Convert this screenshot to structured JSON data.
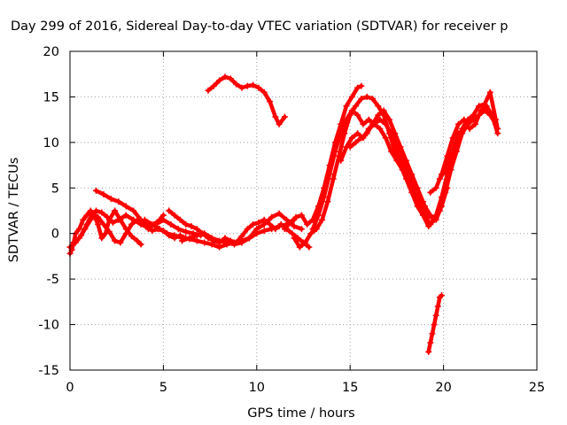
{
  "chart_data": {
    "type": "line",
    "title": "Day 299 of 2016, Sidereal Day-to-day VTEC variation (SDTVAR) for receiver p",
    "xlabel": "GPS time / hours",
    "ylabel": "SDTVAR / TECUs",
    "xlim": [
      0,
      25
    ],
    "ylim": [
      -15,
      20
    ],
    "xticks": [
      0,
      5,
      10,
      15,
      20,
      25
    ],
    "yticks": [
      -15,
      -10,
      -5,
      0,
      5,
      10,
      15,
      20
    ],
    "grid": true,
    "series_color": "#ff0000",
    "series": [
      {
        "x": [
          0,
          0.1,
          0.2,
          0.3,
          0.5,
          0.7,
          0.9,
          1.1,
          1.3,
          1.5,
          1.7,
          1.9,
          2.1,
          2.4,
          2.7,
          3.0,
          3.3,
          3.6,
          3.8
        ],
        "y": [
          -2.2,
          -1.8,
          -1.0,
          0.0,
          0.5,
          1.5,
          2.0,
          2.5,
          2.0,
          1.0,
          -0.5,
          0.0,
          1.5,
          2.5,
          1.5,
          0.5,
          -0.3,
          -0.8,
          -1.2
        ]
      },
      {
        "x": [
          0,
          0.3,
          0.6,
          0.9,
          1.2,
          1.5,
          1.8,
          2.1,
          2.4,
          2.7,
          3.0,
          3.3,
          3.6,
          3.9,
          4.2,
          4.5,
          4.8,
          5.0
        ],
        "y": [
          -1.5,
          -1.0,
          -0.2,
          1.0,
          2.2,
          1.8,
          1.0,
          0.2,
          -0.8,
          -1.0,
          0.0,
          1.0,
          1.5,
          1.0,
          0.5,
          1.0,
          1.5,
          2.0
        ]
      },
      {
        "x": [
          0.2,
          0.5,
          0.8,
          1.1,
          1.4,
          1.7,
          2.0,
          2.3,
          2.6,
          3.0,
          3.4,
          3.8,
          4.2,
          4.6,
          5.0,
          5.4,
          5.8,
          6.2,
          6.6,
          7.0
        ],
        "y": [
          -1.0,
          -0.5,
          0.5,
          1.5,
          2.5,
          2.3,
          1.8,
          1.2,
          1.5,
          2.0,
          1.5,
          1.0,
          0.8,
          1.0,
          1.5,
          1.0,
          0.5,
          0.2,
          0.0,
          -0.2
        ]
      },
      {
        "x": [
          1.4,
          1.8,
          2.2,
          2.6,
          3.0,
          3.4,
          3.8,
          4.1,
          4.4,
          4.7,
          5.0,
          5.3,
          5.6,
          5.9,
          6.2
        ],
        "y": [
          4.7,
          4.3,
          3.8,
          3.5,
          3.0,
          2.5,
          1.5,
          0.8,
          0.3,
          0.5,
          0.3,
          -0.2,
          -0.5,
          -0.2,
          -0.5
        ]
      },
      {
        "x": [
          5.3,
          5.6,
          5.9,
          6.2,
          6.5,
          6.8,
          7.1,
          7.4,
          7.7,
          8.0,
          8.3,
          8.6,
          8.9,
          9.2,
          9.5,
          9.8,
          10.1,
          10.4,
          10.7,
          11.0,
          11.3,
          11.6,
          11.9,
          12.2,
          12.5,
          12.8
        ],
        "y": [
          2.5,
          2.0,
          1.5,
          1.0,
          0.8,
          0.5,
          0.0,
          -0.5,
          -0.8,
          -1.0,
          -0.5,
          -0.8,
          -1.0,
          -0.3,
          0.5,
          1.0,
          1.2,
          1.5,
          1.0,
          0.5,
          1.0,
          0.5,
          0.0,
          -0.5,
          -1.0,
          -1.5
        ]
      },
      {
        "x": [
          4.0,
          4.4,
          4.8,
          5.2,
          5.6,
          6.0,
          6.4,
          6.8,
          7.2,
          7.6,
          8.0,
          8.4,
          8.8,
          9.2,
          9.6,
          10.0,
          10.4,
          10.8,
          11.2,
          11.6,
          12.0
        ],
        "y": [
          1.5,
          1.0,
          0.5,
          0.0,
          -0.2,
          -0.5,
          -0.6,
          -0.8,
          -1.0,
          -1.2,
          -1.5,
          -1.2,
          -1.0,
          -0.8,
          -0.5,
          0.0,
          0.3,
          0.5,
          0.8,
          1.0,
          1.5
        ]
      },
      {
        "x": [
          6.0,
          6.4,
          6.8,
          7.2,
          7.6,
          8.0,
          8.4,
          8.8,
          9.2,
          9.6,
          10.0,
          10.4,
          10.8,
          11.2,
          11.6,
          12.0,
          12.4
        ],
        "y": [
          -0.8,
          -0.5,
          -0.2,
          0.0,
          -0.5,
          -0.8,
          -1.0,
          -1.2,
          -1.0,
          -0.5,
          0.5,
          1.0,
          1.8,
          2.2,
          1.5,
          0.8,
          0.5
        ]
      },
      {
        "x": [
          7.4,
          7.7,
          8.0,
          8.3,
          8.6,
          8.9,
          9.2,
          9.5,
          9.8,
          10.1,
          10.4,
          10.7,
          11.0,
          11.2,
          11.5
        ],
        "y": [
          15.7,
          16.2,
          16.8,
          17.2,
          17.0,
          16.4,
          16.0,
          16.2,
          16.3,
          16.0,
          15.5,
          14.5,
          12.8,
          12.0,
          12.8
        ]
      },
      {
        "x": [
          11.5,
          11.8,
          12.1,
          12.4,
          12.7,
          13.0,
          13.3,
          13.6,
          13.9,
          14.2,
          14.5,
          14.8,
          15.1,
          15.4,
          15.6
        ],
        "y": [
          0.5,
          1.2,
          1.8,
          2.0,
          1.0,
          1.5,
          3.0,
          5.0,
          7.5,
          10.0,
          12.0,
          14.0,
          15.0,
          16.0,
          16.2
        ]
      },
      {
        "x": [
          12.0,
          12.3,
          12.6,
          12.9,
          13.2,
          13.5,
          13.8,
          14.1,
          14.4,
          14.7,
          15.0,
          15.3,
          15.6,
          15.9,
          16.2,
          16.5,
          16.8,
          17.1,
          17.4,
          17.7,
          18.0,
          18.3,
          18.6,
          18.9,
          19.2,
          19.5
        ],
        "y": [
          -0.5,
          -1.5,
          -1.0,
          0.0,
          0.5,
          1.5,
          3.5,
          6.0,
          8.5,
          11.0,
          13.0,
          14.0,
          14.8,
          15.0,
          14.8,
          14.0,
          13.0,
          11.0,
          9.0,
          7.5,
          6.0,
          4.5,
          3.0,
          2.0,
          0.8,
          1.5
        ]
      },
      {
        "x": [
          13.0,
          13.3,
          13.6,
          13.9,
          14.2,
          14.5,
          14.8,
          15.1,
          15.4,
          15.7,
          16.0,
          16.3,
          16.6,
          16.9,
          17.2,
          17.5,
          17.8,
          18.1,
          18.4,
          18.7,
          19.0,
          19.3,
          19.6,
          19.9,
          20.2
        ],
        "y": [
          0.5,
          2.0,
          4.0,
          6.5,
          9.0,
          11.0,
          12.5,
          13.5,
          13.0,
          12.0,
          12.5,
          12.0,
          11.5,
          10.5,
          9.0,
          8.0,
          7.0,
          6.0,
          5.0,
          4.0,
          3.0,
          2.0,
          1.5,
          3.0,
          5.0
        ]
      },
      {
        "x": [
          14.5,
          14.8,
          15.1,
          15.4,
          15.7,
          16.0,
          16.3,
          16.6,
          16.9,
          17.2,
          17.5,
          17.8,
          18.1,
          18.4,
          18.7,
          19.0,
          19.3,
          19.6,
          19.9,
          20.2,
          20.5,
          20.8
        ],
        "y": [
          8.0,
          9.5,
          10.5,
          11.0,
          10.5,
          11.5,
          12.0,
          12.5,
          12.0,
          11.0,
          9.5,
          8.0,
          6.5,
          5.0,
          3.5,
          2.0,
          1.0,
          2.0,
          4.0,
          6.5,
          9.0,
          11.0
        ]
      },
      {
        "x": [
          15.0,
          15.3,
          15.6,
          15.9,
          16.2,
          16.5,
          16.8,
          17.1,
          17.4,
          17.7,
          18.0,
          18.3,
          18.6,
          18.9,
          19.2,
          19.5,
          19.8,
          20.1,
          20.4,
          20.7,
          21.0,
          21.3,
          21.6,
          21.9,
          22.2,
          22.5,
          22.8
        ],
        "y": [
          9.5,
          10.0,
          10.5,
          11.0,
          12.0,
          13.0,
          13.5,
          12.5,
          11.0,
          9.5,
          8.0,
          6.5,
          5.0,
          3.5,
          2.0,
          1.5,
          2.5,
          4.5,
          7.0,
          9.0,
          11.0,
          12.0,
          12.5,
          13.0,
          13.5,
          13.0,
          12.0
        ]
      },
      {
        "x": [
          19.3,
          19.6,
          19.9,
          20.2,
          20.5,
          20.8,
          21.1,
          21.4,
          21.7,
          22.0,
          22.3,
          22.6,
          22.9
        ],
        "y": [
          4.5,
          5.0,
          6.5,
          8.5,
          10.5,
          12.0,
          12.5,
          11.5,
          12.0,
          13.5,
          14.0,
          13.0,
          11.0
        ]
      },
      {
        "x": [
          19.8,
          20.1,
          20.4,
          20.7,
          21.0,
          21.3,
          21.6,
          21.9,
          22.2,
          22.5,
          22.8,
          22.9
        ],
        "y": [
          6.0,
          7.0,
          8.5,
          10.0,
          11.5,
          12.5,
          13.0,
          14.0,
          14.2,
          15.5,
          12.5,
          11.5
        ]
      },
      {
        "x": [
          19.2,
          19.3,
          19.4,
          19.5,
          19.6,
          19.7,
          19.8,
          19.9
        ],
        "y": [
          -13.0,
          -12.0,
          -11.0,
          -10.0,
          -9.0,
          -8.0,
          -7.0,
          -6.8
        ]
      }
    ]
  }
}
